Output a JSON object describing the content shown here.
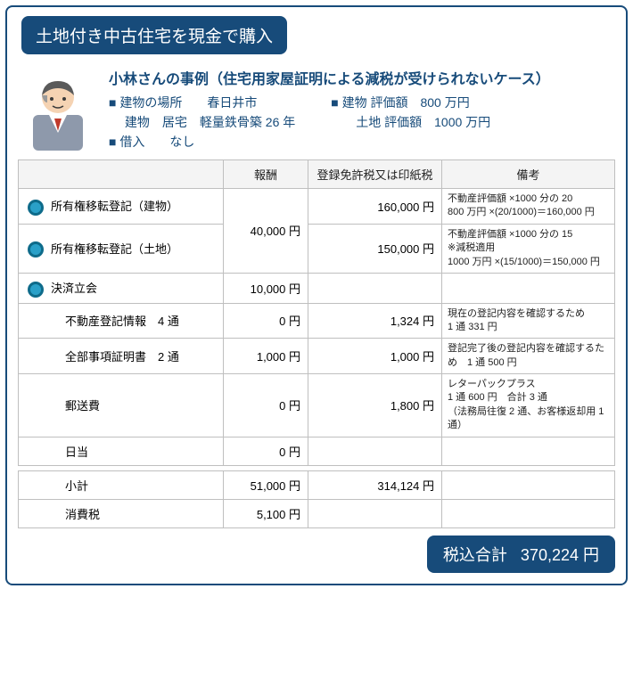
{
  "title": "土地付き中古住宅を現金で購入",
  "case": {
    "heading": "小林さんの事例（住宅用家屋証明による減税が受けられないケース）",
    "left_lines": [
      "■ 建物の場所　　春日井市",
      "　 建物　居宅　軽量鉄骨築 26 年",
      "■ 借入　　なし"
    ],
    "right_lines": [
      "■ 建物 評価額　800 万円",
      "　　土地 評価額　1000 万円"
    ]
  },
  "headers": [
    "",
    "報酬",
    "登録免許税又は印紙税",
    "備考"
  ],
  "rows": [
    {
      "bullet": true,
      "item": "所有権移転登記（建物）",
      "fee": "",
      "tax": "160,000 円",
      "remark": "不動産評価額 ×1000 分の 20\n800 万円 ×(20/1000)＝160,000 円",
      "mergeFee": "40,000 円",
      "rowspanFee": 2
    },
    {
      "bullet": true,
      "item": "所有権移転登記（土地）",
      "fee": null,
      "tax": "150,000 円",
      "remark": "不動産評価額 ×1000 分の 15\n※減税適用\n1000 万円 ×(15/1000)＝150,000 円"
    },
    {
      "bullet": true,
      "item": "決済立会",
      "fee": "10,000 円",
      "tax": "",
      "remark": ""
    },
    {
      "bullet": false,
      "indent": true,
      "item": "不動産登記情報　4 通",
      "fee": "0 円",
      "tax": "1,324 円",
      "remark": "現在の登記内容を確認するため\n1 通 331 円"
    },
    {
      "bullet": false,
      "indent": true,
      "item": "全部事項証明書　2 通",
      "fee": "1,000 円",
      "tax": "1,000 円",
      "remark": "登記完了後の登記内容を確認するため　1 通 500 円"
    },
    {
      "bullet": false,
      "indent": true,
      "item": "郵送費",
      "fee": "0 円",
      "tax": "1,800 円",
      "remark": "レターパックプラス\n1 通 600 円　合計 3 通\n（法務局往復 2 通、お客様返却用 1 通）"
    },
    {
      "bullet": false,
      "indent": true,
      "item": "日当",
      "fee": "0 円",
      "tax": "",
      "remark": ""
    }
  ],
  "subtotal": {
    "label": "小計",
    "fee": "51,000 円",
    "tax": "314,124 円"
  },
  "tax": {
    "label": "消費税",
    "fee": "5,100 円"
  },
  "total": {
    "label": "税込合計",
    "value": "370,224 円"
  }
}
